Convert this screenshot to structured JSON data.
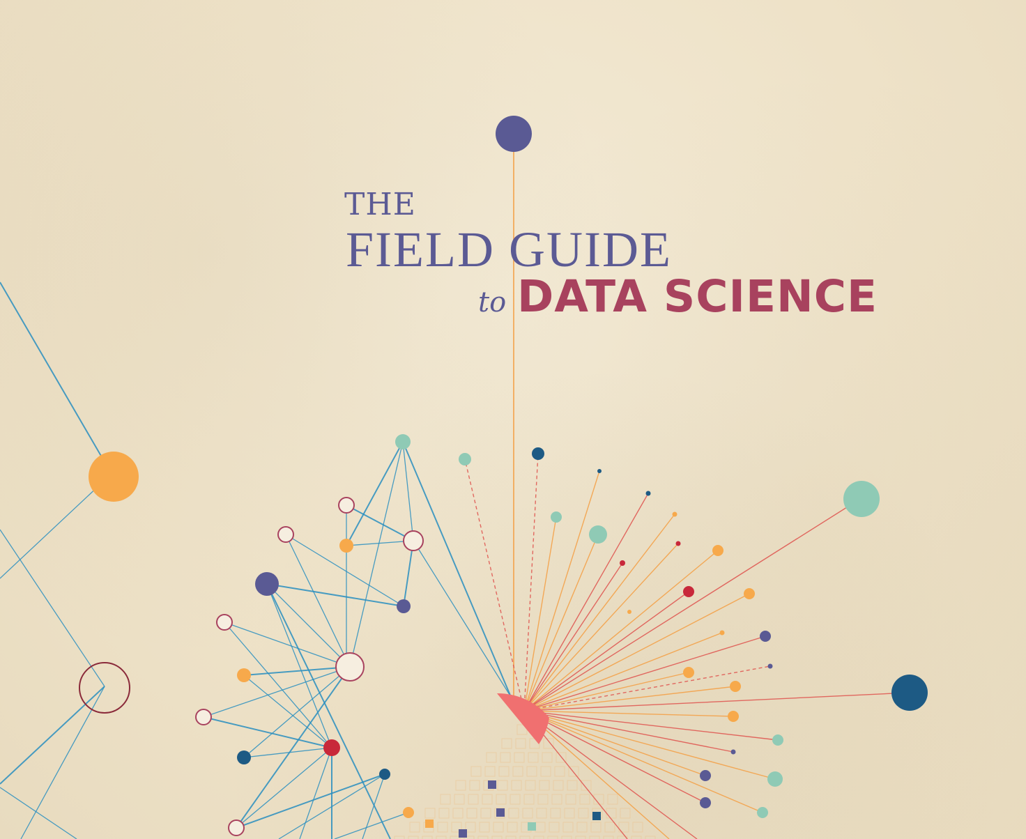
{
  "cover": {
    "title_the": "THE",
    "title_field_guide": "FIELD GUIDE",
    "title_to": "to",
    "title_data_science": "DATA SCIENCE"
  },
  "palette": {
    "background": "#efe4cc",
    "title_blue": "#5b5a94",
    "title_red": "#a8425e",
    "line_blue": "#2a8fc0",
    "line_orange": "#f4a24a",
    "line_red": "#e05a54",
    "node_orange": "#f7a94b",
    "node_teal": "#8fcab5",
    "node_navy": "#1d5a84",
    "node_purple": "#5a5a94",
    "node_red": "#c8283a",
    "hub_coral": "#f07070"
  },
  "icons": [
    "network-node-icon",
    "hub-icon",
    "grid-cell-icon"
  ]
}
